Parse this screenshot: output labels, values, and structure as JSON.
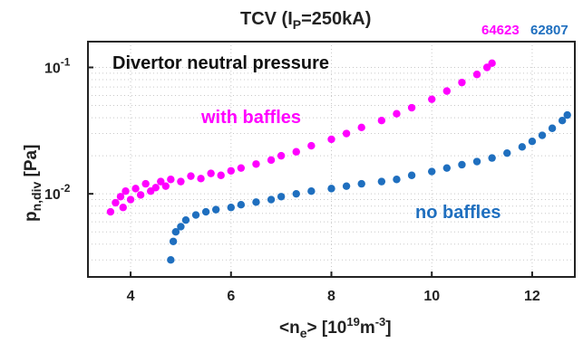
{
  "chart_data": {
    "type": "scatter",
    "title_main": "TCV (I",
    "title_sub": "P",
    "title_tail": "=250kA)",
    "panel_label": "Divertor neutral pressure",
    "xlabel_main": "<n",
    "xlabel_sub": "e",
    "xlabel_mid": "> [10",
    "xlabel_sup1": "19",
    "xlabel_unit": "m",
    "xlabel_sup2": "-3",
    "xlabel_end": "]",
    "ylabel_main": "p",
    "ylabel_sub": "n,div",
    "ylabel_unit": " [Pa]",
    "xlim": [
      3.15,
      12.85
    ],
    "ylim": [
      0.0022,
      0.16
    ],
    "yscale": "log",
    "grid": "dotted",
    "x_ticks": [
      {
        "value": 4,
        "label": "4"
      },
      {
        "value": 6,
        "label": "6"
      },
      {
        "value": 8,
        "label": "8"
      },
      {
        "value": 10,
        "label": "10"
      },
      {
        "value": 12,
        "label": "12"
      }
    ],
    "y_ticks": [
      {
        "value": 0.01,
        "base": "10",
        "exp": "-2"
      },
      {
        "value": 0.1,
        "base": "10",
        "exp": "-1"
      }
    ],
    "series": [
      {
        "name": "64623",
        "color": "#ff00ff",
        "annotation": "with baffles",
        "points": [
          [
            3.6,
            0.0072
          ],
          [
            3.7,
            0.0085
          ],
          [
            3.8,
            0.0095
          ],
          [
            3.85,
            0.0078
          ],
          [
            3.9,
            0.0105
          ],
          [
            4.0,
            0.009
          ],
          [
            4.1,
            0.011
          ],
          [
            4.2,
            0.0098
          ],
          [
            4.3,
            0.012
          ],
          [
            4.4,
            0.0105
          ],
          [
            4.5,
            0.0112
          ],
          [
            4.6,
            0.0125
          ],
          [
            4.7,
            0.0115
          ],
          [
            4.8,
            0.013
          ],
          [
            5.0,
            0.0125
          ],
          [
            5.2,
            0.0138
          ],
          [
            5.4,
            0.0132
          ],
          [
            5.6,
            0.0145
          ],
          [
            5.8,
            0.014
          ],
          [
            6.0,
            0.0152
          ],
          [
            6.2,
            0.016
          ],
          [
            6.5,
            0.0172
          ],
          [
            6.8,
            0.0185
          ],
          [
            7.0,
            0.02
          ],
          [
            7.3,
            0.0215
          ],
          [
            7.6,
            0.024
          ],
          [
            8.0,
            0.027
          ],
          [
            8.3,
            0.03
          ],
          [
            8.6,
            0.0335
          ],
          [
            9.0,
            0.038
          ],
          [
            9.3,
            0.043
          ],
          [
            9.6,
            0.048
          ],
          [
            10.0,
            0.056
          ],
          [
            10.3,
            0.065
          ],
          [
            10.6,
            0.076
          ],
          [
            10.9,
            0.088
          ],
          [
            11.1,
            0.1
          ],
          [
            11.2,
            0.108
          ]
        ]
      },
      {
        "name": "62807",
        "color": "#1f6fbf",
        "annotation": "no baffles",
        "points": [
          [
            4.8,
            0.003
          ],
          [
            4.85,
            0.0042
          ],
          [
            4.9,
            0.005
          ],
          [
            5.0,
            0.0055
          ],
          [
            5.1,
            0.0062
          ],
          [
            5.3,
            0.0068
          ],
          [
            5.5,
            0.0072
          ],
          [
            5.7,
            0.0075
          ],
          [
            6.0,
            0.0078
          ],
          [
            6.2,
            0.0082
          ],
          [
            6.5,
            0.0086
          ],
          [
            6.8,
            0.009
          ],
          [
            7.0,
            0.0095
          ],
          [
            7.3,
            0.01
          ],
          [
            7.6,
            0.0105
          ],
          [
            8.0,
            0.011
          ],
          [
            8.3,
            0.0115
          ],
          [
            8.6,
            0.012
          ],
          [
            9.0,
            0.0125
          ],
          [
            9.3,
            0.013
          ],
          [
            9.6,
            0.014
          ],
          [
            10.0,
            0.015
          ],
          [
            10.3,
            0.016
          ],
          [
            10.6,
            0.017
          ],
          [
            10.9,
            0.018
          ],
          [
            11.2,
            0.0192
          ],
          [
            11.5,
            0.021
          ],
          [
            11.8,
            0.0235
          ],
          [
            12.0,
            0.026
          ],
          [
            12.2,
            0.029
          ],
          [
            12.4,
            0.033
          ],
          [
            12.6,
            0.038
          ],
          [
            12.7,
            0.042
          ]
        ]
      }
    ]
  }
}
